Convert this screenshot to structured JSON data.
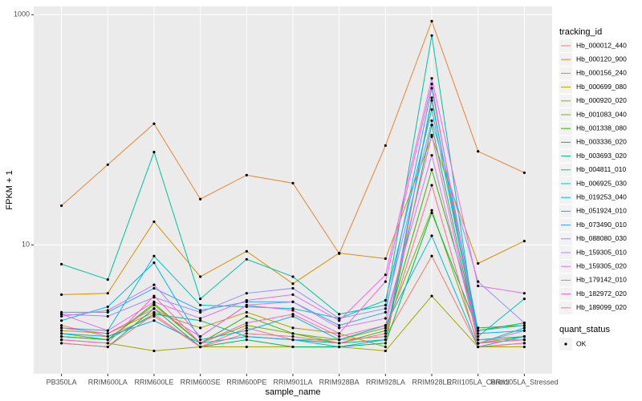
{
  "chart_data": {
    "type": "line",
    "log_y": true,
    "grid": true,
    "xlabel": "sample_name",
    "ylabel": "FPKM + 1",
    "legend_title": "tracking_id",
    "legend_position": "right",
    "point_legend_title": "quant_status",
    "point_legend_label": "OK",
    "point_color": "#000000",
    "categories": [
      "PB350LA",
      "RRIM600LA",
      "RRIM600LE",
      "RRIM600SE",
      "RRIM600PE",
      "RRIM901LA",
      "RRIM928BA",
      "RRIM928LA",
      "RRIM928LE",
      "RRII105LA_Control",
      "RRII105LA_Stressed"
    ],
    "ylim": [
      0.76,
      1180
    ],
    "yticks": [
      10,
      1000
    ],
    "series": [
      {
        "name": "Hb_000012_440",
        "color": "#F8766D",
        "values": [
          2.0,
          1.6,
          2.4,
          1.3,
          1.9,
          1.5,
          1.5,
          1.6,
          8.0,
          1.3,
          1.4
        ]
      },
      {
        "name": "Hb_000120_900",
        "color": "#EA8331",
        "values": [
          21.9,
          49.8,
          113,
          25,
          40.4,
          34.4,
          8.4,
          73,
          879,
          65,
          42.4
        ]
      },
      {
        "name": "Hb_000156_240",
        "color": "#D89000",
        "values": [
          3.7,
          3.8,
          15.9,
          5.3,
          8.8,
          4.6,
          8.5,
          7.6,
          87,
          6.9,
          10.8
        ]
      },
      {
        "name": "Hb_000699_080",
        "color": "#C09B00",
        "values": [
          1.8,
          1.7,
          2.6,
          1.9,
          2.6,
          1.9,
          1.7,
          1.3,
          190,
          1.4,
          1.5
        ]
      },
      {
        "name": "Hb_000920_020",
        "color": "#A3A500",
        "values": [
          1.5,
          1.4,
          1.2,
          1.3,
          1.3,
          1.3,
          1.3,
          1.2,
          3.6,
          1.3,
          1.3
        ]
      },
      {
        "name": "Hb_001083_040",
        "color": "#7CAE00",
        "values": [
          1.7,
          1.5,
          3.0,
          1.4,
          2.0,
          1.7,
          1.5,
          1.9,
          20,
          1.4,
          1.6
        ]
      },
      {
        "name": "Hb_001338_080",
        "color": "#39B600",
        "values": [
          1.6,
          1.5,
          3.1,
          1.4,
          2.4,
          1.7,
          1.4,
          1.8,
          45,
          1.9,
          2.0
        ]
      },
      {
        "name": "Hb_003336_020",
        "color": "#00BB4E",
        "values": [
          1.4,
          1.3,
          2.8,
          1.3,
          1.5,
          1.3,
          1.3,
          1.4,
          19,
          1.8,
          2.1
        ]
      },
      {
        "name": "Hb_003693_020",
        "color": "#00BF7D",
        "values": [
          1.6,
          1.5,
          2.5,
          2.2,
          1.6,
          1.5,
          1.4,
          1.5,
          110,
          1.5,
          1.6
        ]
      },
      {
        "name": "Hb_004811_010",
        "color": "#00C1A3",
        "values": [
          6.8,
          5.0,
          64,
          3.4,
          7.5,
          5.3,
          2.5,
          3.0,
          659,
          1.39,
          1.9
        ]
      },
      {
        "name": "Hb_006925_030",
        "color": "#00BFC4",
        "values": [
          1.9,
          1.8,
          8.0,
          3.0,
          2.9,
          2.8,
          2.3,
          3.3,
          150,
          1.6,
          3.4
        ]
      },
      {
        "name": "Hb_019253_040",
        "color": "#00BAE0",
        "values": [
          2.2,
          2.9,
          7.0,
          1.5,
          1.8,
          2.4,
          1.5,
          2.0,
          12,
          1.3,
          1.6
        ]
      },
      {
        "name": "Hb_051924_010",
        "color": "#00B0F6",
        "values": [
          1.7,
          1.6,
          2.2,
          1.4,
          1.6,
          1.5,
          1.3,
          1.5,
          180,
          1.7,
          1.8
        ]
      },
      {
        "name": "Hb_073490_010",
        "color": "#35A2FF",
        "values": [
          2.6,
          2.6,
          4.2,
          2.7,
          3.2,
          3.2,
          2.0,
          2.6,
          230,
          1.8,
          2.0
        ]
      },
      {
        "name": "Hb_088080_030",
        "color": "#9590FF",
        "values": [
          2.5,
          2.4,
          3.5,
          2.6,
          3.8,
          4.2,
          2.3,
          2.8,
          120,
          4.8,
          2.1
        ]
      },
      {
        "name": "Hb_159305_010",
        "color": "#C77CFF",
        "values": [
          2.4,
          2.7,
          4.5,
          1.6,
          3.0,
          3.2,
          1.9,
          2.3,
          60,
          1.5,
          1.5
        ]
      },
      {
        "name": "Hb_159305_020",
        "color": "#E76BF3",
        "values": [
          2.5,
          1.8,
          3.2,
          2.3,
          3.3,
          3.7,
          2.2,
          5.5,
          280,
          4.4,
          3.8
        ]
      },
      {
        "name": "Hb_179142_010",
        "color": "#FA62DB",
        "values": [
          1.9,
          1.7,
          2.8,
          1.6,
          3.0,
          2.7,
          1.7,
          4.8,
          250,
          1.4,
          1.8
        ]
      },
      {
        "name": "Hb_182972_020",
        "color": "#FF62BC",
        "values": [
          1.5,
          1.4,
          3.6,
          1.4,
          2.1,
          2.5,
          1.6,
          2.0,
          90,
          1.4,
          1.5
        ]
      },
      {
        "name": "Hb_189099_020",
        "color": "#FF6C91",
        "values": [
          1.4,
          1.3,
          2.5,
          1.3,
          1.7,
          1.6,
          1.4,
          1.7,
          33,
          1.3,
          1.4
        ]
      }
    ]
  }
}
